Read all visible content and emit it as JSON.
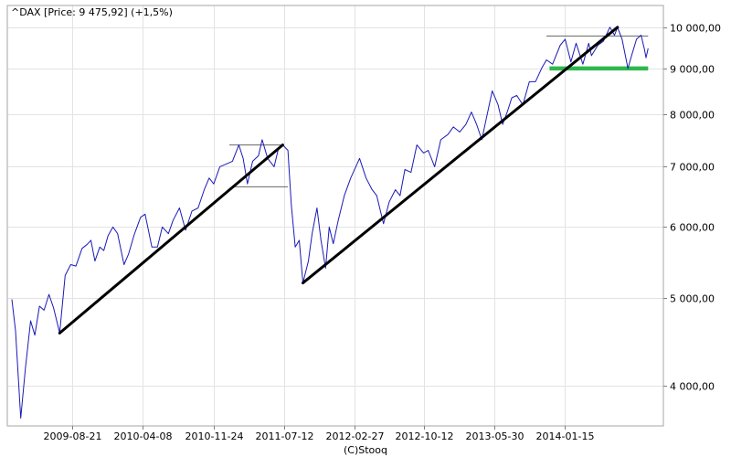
{
  "chart_data": {
    "type": "line",
    "title": "^DAX [Price: 9 475,92] (+1,5%)",
    "credit": "(C)Stooq",
    "y_scale": "log",
    "ylim": [
      3650,
      10450
    ],
    "grid": true,
    "y_ticks": [
      {
        "value": 4000,
        "label": "4 000,00"
      },
      {
        "value": 5000,
        "label": "5 000,00"
      },
      {
        "value": 6000,
        "label": "6 000,00"
      },
      {
        "value": 7000,
        "label": "7 000,00"
      },
      {
        "value": 8000,
        "label": "8 000,00"
      },
      {
        "value": 9000,
        "label": "9 000,00"
      },
      {
        "value": 10000,
        "label": "10 000,00"
      }
    ],
    "x_range": [
      "2009-02-01",
      "2014-10-15"
    ],
    "x_ticks": [
      "2009-08-21",
      "2010-04-08",
      "2010-11-24",
      "2011-07-12",
      "2012-02-27",
      "2012-10-12",
      "2013-05-30",
      "2014-01-15"
    ],
    "series": [
      {
        "color": "#1a1ab8",
        "points": [
          [
            "2009-02-04",
            4985
          ],
          [
            "2009-02-16",
            4600
          ],
          [
            "2009-03-05",
            3680
          ],
          [
            "2009-03-20",
            4180
          ],
          [
            "2009-04-06",
            4720
          ],
          [
            "2009-04-20",
            4550
          ],
          [
            "2009-05-05",
            4900
          ],
          [
            "2009-05-20",
            4850
          ],
          [
            "2009-06-05",
            5050
          ],
          [
            "2009-06-20",
            4880
          ],
          [
            "2009-07-10",
            4575
          ],
          [
            "2009-07-28",
            5300
          ],
          [
            "2009-08-15",
            5450
          ],
          [
            "2009-09-01",
            5430
          ],
          [
            "2009-09-21",
            5680
          ],
          [
            "2009-10-08",
            5740
          ],
          [
            "2009-10-20",
            5800
          ],
          [
            "2009-11-02",
            5500
          ],
          [
            "2009-11-18",
            5700
          ],
          [
            "2009-12-01",
            5650
          ],
          [
            "2009-12-15",
            5870
          ],
          [
            "2009-12-31",
            6000
          ],
          [
            "2010-01-15",
            5900
          ],
          [
            "2010-02-05",
            5450
          ],
          [
            "2010-02-20",
            5600
          ],
          [
            "2010-03-10",
            5880
          ],
          [
            "2010-03-31",
            6150
          ],
          [
            "2010-04-15",
            6200
          ],
          [
            "2010-05-07",
            5700
          ],
          [
            "2010-05-25",
            5700
          ],
          [
            "2010-06-10",
            6000
          ],
          [
            "2010-06-30",
            5900
          ],
          [
            "2010-07-15",
            6100
          ],
          [
            "2010-08-05",
            6300
          ],
          [
            "2010-08-25",
            5950
          ],
          [
            "2010-09-15",
            6250
          ],
          [
            "2010-10-05",
            6300
          ],
          [
            "2010-10-25",
            6600
          ],
          [
            "2010-11-10",
            6800
          ],
          [
            "2010-11-25",
            6700
          ],
          [
            "2010-12-15",
            7000
          ],
          [
            "2011-01-05",
            7050
          ],
          [
            "2011-01-25",
            7100
          ],
          [
            "2011-02-15",
            7400
          ],
          [
            "2011-03-01",
            7150
          ],
          [
            "2011-03-15",
            6700
          ],
          [
            "2011-04-01",
            7100
          ],
          [
            "2011-04-20",
            7200
          ],
          [
            "2011-05-02",
            7500
          ],
          [
            "2011-05-20",
            7150
          ],
          [
            "2011-06-10",
            7000
          ],
          [
            "2011-06-25",
            7350
          ],
          [
            "2011-07-08",
            7400
          ],
          [
            "2011-07-25",
            7300
          ],
          [
            "2011-08-05",
            6350
          ],
          [
            "2011-08-18",
            5700
          ],
          [
            "2011-08-31",
            5800
          ],
          [
            "2011-09-12",
            5200
          ],
          [
            "2011-09-30",
            5500
          ],
          [
            "2011-10-12",
            5900
          ],
          [
            "2011-10-28",
            6300
          ],
          [
            "2011-11-10",
            5800
          ],
          [
            "2011-11-25",
            5400
          ],
          [
            "2011-12-07",
            6000
          ],
          [
            "2011-12-20",
            5750
          ],
          [
            "2012-01-05",
            6100
          ],
          [
            "2012-01-25",
            6500
          ],
          [
            "2012-02-15",
            6800
          ],
          [
            "2012-03-15",
            7150
          ],
          [
            "2012-04-05",
            6800
          ],
          [
            "2012-04-25",
            6600
          ],
          [
            "2012-05-10",
            6500
          ],
          [
            "2012-06-01",
            6050
          ],
          [
            "2012-06-20",
            6400
          ],
          [
            "2012-07-10",
            6600
          ],
          [
            "2012-07-25",
            6500
          ],
          [
            "2012-08-10",
            6950
          ],
          [
            "2012-08-30",
            6900
          ],
          [
            "2012-09-18",
            7400
          ],
          [
            "2012-10-10",
            7250
          ],
          [
            "2012-10-25",
            7300
          ],
          [
            "2012-11-15",
            7000
          ],
          [
            "2012-12-05",
            7500
          ],
          [
            "2012-12-28",
            7600
          ],
          [
            "2013-01-15",
            7750
          ],
          [
            "2013-02-05",
            7650
          ],
          [
            "2013-02-25",
            7800
          ],
          [
            "2013-03-15",
            8050
          ],
          [
            "2013-04-01",
            7800
          ],
          [
            "2013-04-18",
            7500
          ],
          [
            "2013-05-02",
            7900
          ],
          [
            "2013-05-22",
            8500
          ],
          [
            "2013-06-10",
            8200
          ],
          [
            "2013-06-25",
            7800
          ],
          [
            "2013-07-10",
            8050
          ],
          [
            "2013-07-25",
            8350
          ],
          [
            "2013-08-10",
            8400
          ],
          [
            "2013-08-30",
            8200
          ],
          [
            "2013-09-20",
            8700
          ],
          [
            "2013-10-10",
            8700
          ],
          [
            "2013-10-30",
            9000
          ],
          [
            "2013-11-15",
            9200
          ],
          [
            "2013-12-05",
            9100
          ],
          [
            "2013-12-30",
            9550
          ],
          [
            "2014-01-15",
            9700
          ],
          [
            "2014-02-03",
            9150
          ],
          [
            "2014-02-20",
            9600
          ],
          [
            "2014-03-14",
            9100
          ],
          [
            "2014-04-02",
            9600
          ],
          [
            "2014-04-11",
            9300
          ],
          [
            "2014-05-02",
            9550
          ],
          [
            "2014-05-20",
            9650
          ],
          [
            "2014-06-10",
            10000
          ],
          [
            "2014-06-25",
            9800
          ],
          [
            "2014-07-05",
            10000
          ],
          [
            "2014-07-20",
            9700
          ],
          [
            "2014-08-08",
            9000
          ],
          [
            "2014-08-20",
            9300
          ],
          [
            "2014-09-05",
            9700
          ],
          [
            "2014-09-20",
            9800
          ],
          [
            "2014-10-01",
            9450
          ],
          [
            "2014-10-06",
            9250
          ],
          [
            "2014-10-13",
            9476
          ]
        ]
      }
    ],
    "annotations": {
      "trendlines": [
        {
          "color": "#000000",
          "from": [
            "2009-07-10",
            4575
          ],
          "to": [
            "2011-07-08",
            7400
          ]
        },
        {
          "color": "#000000",
          "from": [
            "2011-09-12",
            5200
          ],
          "to": [
            "2014-07-05",
            10000
          ]
        }
      ],
      "levels": [
        {
          "color": "#666666",
          "from": [
            "2011-01-15",
            7400
          ],
          "to": [
            "2011-07-08",
            7400
          ]
        },
        {
          "color": "#666666",
          "from": [
            "2011-02-01",
            6650
          ],
          "to": [
            "2011-07-25",
            6650
          ]
        },
        {
          "color": "#666666",
          "from": [
            "2013-11-15",
            9780
          ],
          "to": [
            "2014-10-13",
            9780
          ]
        },
        {
          "color": "#2db84d",
          "from": [
            "2013-11-25",
            9000
          ],
          "to": [
            "2014-10-13",
            9000
          ]
        }
      ]
    }
  }
}
